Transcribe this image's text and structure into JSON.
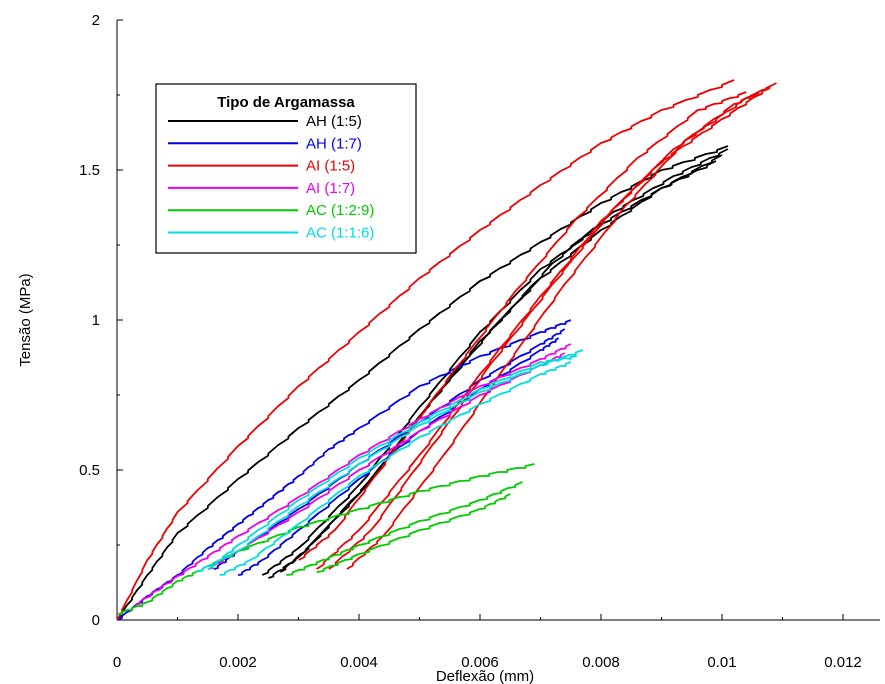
{
  "chart_data": {
    "type": "line",
    "xlabel": "Deflexão (mm)",
    "ylabel": "Tensão (MPa)",
    "xlim": [
      0,
      0.013
    ],
    "ylim": [
      0,
      2
    ],
    "x_ticks": [
      0,
      0.002,
      0.004,
      0.006,
      0.008,
      0.01,
      0.012
    ],
    "x_tick_labels": [
      "0",
      "0.002",
      "0.004",
      "0.006",
      "0.008",
      "0.01",
      "0.012"
    ],
    "y_ticks": [
      0,
      0.5,
      1,
      1.5,
      2
    ],
    "y_tick_labels": [
      "0",
      "0.5",
      "1",
      "1.5",
      "2"
    ],
    "grid": false,
    "legend": {
      "title": "Tipo de Argamassa",
      "placement": "top-left"
    },
    "series": [
      {
        "name": "AH (1:5)",
        "color": "#000000",
        "curves": [
          [
            [
              0,
              0
            ],
            [
              0.0005,
              0.15
            ],
            [
              0.001,
              0.29
            ],
            [
              0.002,
              0.47
            ],
            [
              0.003,
              0.64
            ],
            [
              0.004,
              0.8
            ],
            [
              0.005,
              0.97
            ],
            [
              0.006,
              1.13
            ],
            [
              0.007,
              1.26
            ],
            [
              0.008,
              1.39
            ],
            [
              0.009,
              1.5
            ],
            [
              0.0101,
              1.58
            ]
          ],
          [
            [
              0.0025,
              0.14
            ],
            [
              0.003,
              0.21
            ],
            [
              0.004,
              0.42
            ],
            [
              0.005,
              0.68
            ],
            [
              0.006,
              0.93
            ],
            [
              0.007,
              1.14
            ],
            [
              0.008,
              1.3
            ],
            [
              0.009,
              1.44
            ],
            [
              0.01,
              1.55
            ]
          ],
          [
            [
              0.0027,
              0.16
            ],
            [
              0.0032,
              0.25
            ],
            [
              0.0042,
              0.47
            ],
            [
              0.0052,
              0.73
            ],
            [
              0.0062,
              0.97
            ],
            [
              0.0072,
              1.19
            ],
            [
              0.0082,
              1.36
            ],
            [
              0.0092,
              1.48
            ],
            [
              0.0101,
              1.57
            ]
          ],
          [
            [
              0.0024,
              0.15
            ],
            [
              0.003,
              0.24
            ],
            [
              0.004,
              0.45
            ],
            [
              0.005,
              0.71
            ],
            [
              0.006,
              0.96
            ],
            [
              0.007,
              1.17
            ],
            [
              0.008,
              1.32
            ],
            [
              0.009,
              1.44
            ],
            [
              0.0099,
              1.53
            ]
          ]
        ]
      },
      {
        "name": "AH (1:7)",
        "color": "#0000ee",
        "curves": [
          [
            [
              0,
              0
            ],
            [
              0.0005,
              0.08
            ],
            [
              0.001,
              0.15
            ],
            [
              0.0015,
              0.24
            ],
            [
              0.002,
              0.32
            ],
            [
              0.0025,
              0.4
            ],
            [
              0.003,
              0.48
            ],
            [
              0.0035,
              0.57
            ],
            [
              0.004,
              0.64
            ],
            [
              0.005,
              0.78
            ],
            [
              0.006,
              0.88
            ],
            [
              0.007,
              0.96
            ],
            [
              0.0075,
              1.0
            ]
          ],
          [
            [
              0.0016,
              0.17
            ],
            [
              0.002,
              0.23
            ],
            [
              0.003,
              0.37
            ],
            [
              0.004,
              0.52
            ],
            [
              0.005,
              0.66
            ],
            [
              0.006,
              0.8
            ],
            [
              0.007,
              0.92
            ],
            [
              0.0074,
              0.97
            ]
          ],
          [
            [
              0.002,
              0.15
            ],
            [
              0.0024,
              0.2
            ],
            [
              0.003,
              0.3
            ],
            [
              0.004,
              0.47
            ],
            [
              0.005,
              0.63
            ],
            [
              0.006,
              0.77
            ],
            [
              0.007,
              0.9
            ],
            [
              0.0073,
              0.94
            ]
          ]
        ]
      },
      {
        "name": "AI (1:5)",
        "color": "#ee0000",
        "curves": [
          [
            [
              0,
              0
            ],
            [
              0.0005,
              0.2
            ],
            [
              0.001,
              0.36
            ],
            [
              0.002,
              0.58
            ],
            [
              0.003,
              0.78
            ],
            [
              0.004,
              0.96
            ],
            [
              0.005,
              1.14
            ],
            [
              0.006,
              1.3
            ],
            [
              0.007,
              1.45
            ],
            [
              0.008,
              1.59
            ],
            [
              0.009,
              1.7
            ],
            [
              0.0102,
              1.8
            ]
          ],
          [
            [
              0.0033,
              0.17
            ],
            [
              0.004,
              0.3
            ],
            [
              0.005,
              0.55
            ],
            [
              0.006,
              0.82
            ],
            [
              0.007,
              1.08
            ],
            [
              0.008,
              1.33
            ],
            [
              0.009,
              1.53
            ],
            [
              0.01,
              1.67
            ],
            [
              0.0108,
              1.78
            ]
          ],
          [
            [
              0.0035,
              0.17
            ],
            [
              0.0042,
              0.3
            ],
            [
              0.0052,
              0.58
            ],
            [
              0.0062,
              0.86
            ],
            [
              0.0072,
              1.12
            ],
            [
              0.0082,
              1.37
            ],
            [
              0.0092,
              1.57
            ],
            [
              0.0102,
              1.72
            ],
            [
              0.0109,
              1.79
            ]
          ],
          [
            [
              0.0038,
              0.17
            ],
            [
              0.0044,
              0.28
            ],
            [
              0.0054,
              0.55
            ],
            [
              0.0064,
              0.84
            ],
            [
              0.0074,
              1.12
            ],
            [
              0.0084,
              1.38
            ],
            [
              0.0094,
              1.6
            ],
            [
              0.0104,
              1.74
            ],
            [
              0.0108,
              1.78
            ]
          ],
          [
            [
              0.003,
              0.2
            ],
            [
              0.0036,
              0.3
            ],
            [
              0.0046,
              0.57
            ],
            [
              0.0056,
              0.84
            ],
            [
              0.0066,
              1.1
            ],
            [
              0.0076,
              1.34
            ],
            [
              0.0086,
              1.54
            ],
            [
              0.0096,
              1.7
            ],
            [
              0.0104,
              1.76
            ]
          ]
        ]
      },
      {
        "name": "AI (1:7)",
        "color": "#ee00ee",
        "curves": [
          [
            [
              0.0003,
              0.05
            ],
            [
              0.0008,
              0.12
            ],
            [
              0.0014,
              0.2
            ],
            [
              0.002,
              0.28
            ],
            [
              0.003,
              0.41
            ],
            [
              0.004,
              0.55
            ],
            [
              0.005,
              0.67
            ],
            [
              0.006,
              0.78
            ],
            [
              0.007,
              0.87
            ],
            [
              0.0075,
              0.92
            ]
          ],
          [
            [
              0.0015,
              0.17
            ],
            [
              0.002,
              0.23
            ],
            [
              0.003,
              0.36
            ],
            [
              0.004,
              0.5
            ],
            [
              0.005,
              0.63
            ],
            [
              0.006,
              0.75
            ],
            [
              0.007,
              0.85
            ],
            [
              0.0074,
              0.89
            ]
          ]
        ]
      },
      {
        "name": "AC (1:2:9)",
        "color": "#00cc00",
        "curves": [
          [
            [
              0,
              0.02
            ],
            [
              0.0005,
              0.06
            ],
            [
              0.001,
              0.13
            ],
            [
              0.0015,
              0.18
            ],
            [
              0.002,
              0.23
            ],
            [
              0.003,
              0.31
            ],
            [
              0.004,
              0.37
            ],
            [
              0.005,
              0.43
            ],
            [
              0.006,
              0.48
            ],
            [
              0.0069,
              0.52
            ]
          ],
          [
            [
              0.0028,
              0.15
            ],
            [
              0.0034,
              0.2
            ],
            [
              0.004,
              0.25
            ],
            [
              0.005,
              0.33
            ],
            [
              0.006,
              0.4
            ],
            [
              0.0067,
              0.46
            ]
          ],
          [
            [
              0.0033,
              0.16
            ],
            [
              0.004,
              0.22
            ],
            [
              0.005,
              0.3
            ],
            [
              0.006,
              0.37
            ],
            [
              0.0065,
              0.42
            ]
          ]
        ]
      },
      {
        "name": "AC (1:1:6)",
        "color": "#00dddd",
        "curves": [
          [
            [
              0.0013,
              0.16
            ],
            [
              0.002,
              0.23
            ],
            [
              0.003,
              0.38
            ],
            [
              0.004,
              0.52
            ],
            [
              0.005,
              0.65
            ],
            [
              0.006,
              0.76
            ],
            [
              0.007,
              0.85
            ],
            [
              0.0077,
              0.9
            ]
          ],
          [
            [
              0.0015,
              0.17
            ],
            [
              0.002,
              0.25
            ],
            [
              0.003,
              0.4
            ],
            [
              0.004,
              0.54
            ],
            [
              0.005,
              0.66
            ],
            [
              0.006,
              0.77
            ],
            [
              0.007,
              0.86
            ],
            [
              0.0076,
              0.88
            ]
          ],
          [
            [
              0.0017,
              0.15
            ],
            [
              0.0022,
              0.2
            ],
            [
              0.003,
              0.32
            ],
            [
              0.004,
              0.48
            ],
            [
              0.005,
              0.61
            ],
            [
              0.006,
              0.72
            ],
            [
              0.007,
              0.82
            ],
            [
              0.0075,
              0.86
            ]
          ]
        ]
      }
    ]
  }
}
